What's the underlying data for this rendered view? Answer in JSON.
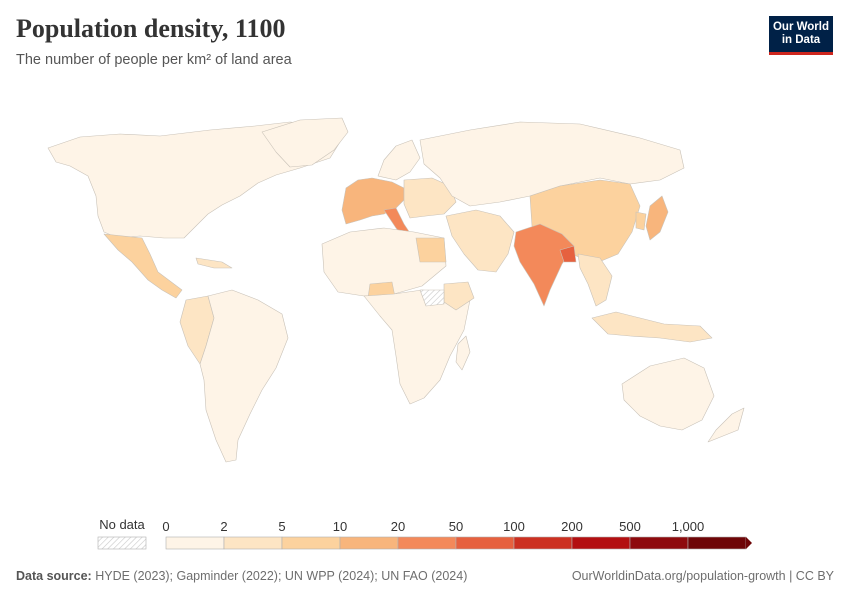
{
  "title": "Population density, 1100",
  "subtitle": "The number of people per km² of land area",
  "logo": {
    "line1": "Our World",
    "line2": "in Data"
  },
  "legend": {
    "no_data_label": "No data",
    "ticks": [
      "0",
      "2",
      "5",
      "10",
      "20",
      "50",
      "100",
      "200",
      "500",
      "1,000"
    ],
    "colors": [
      "#fef4e7",
      "#fde5c4",
      "#fcd29e",
      "#f8b57c",
      "#f3895a",
      "#e6613f",
      "#cc3021",
      "#b30f11",
      "#8e0a0d",
      "#6e0507"
    ]
  },
  "footer": {
    "source_label": "Data source:",
    "source_text": "HYDE (2023); Gapminder (2022); UN WPP (2024); UN FAO (2024)",
    "credit": "OurWorldinData.org/population-growth | CC BY"
  },
  "regions": [
    {
      "name": "North America",
      "density_bin": "0-2"
    },
    {
      "name": "Mexico and Central America",
      "density_bin": "2-5"
    },
    {
      "name": "South America",
      "density_bin": "0-2"
    },
    {
      "name": "Andean South America",
      "density_bin": "2-5"
    },
    {
      "name": "Western Europe",
      "density_bin": "10-20"
    },
    {
      "name": "Italy",
      "density_bin": "20-50"
    },
    {
      "name": "Eastern Europe",
      "density_bin": "2-5"
    },
    {
      "name": "Russia and Central Asia",
      "density_bin": "0-2"
    },
    {
      "name": "Middle East",
      "density_bin": "2-5"
    },
    {
      "name": "Egypt",
      "density_bin": "5-10"
    },
    {
      "name": "India",
      "density_bin": "20-50"
    },
    {
      "name": "Bangladesh",
      "density_bin": "50-100"
    },
    {
      "name": "China",
      "density_bin": "5-10"
    },
    {
      "name": "Japan",
      "density_bin": "10-20"
    },
    {
      "name": "Korea",
      "density_bin": "5-10"
    },
    {
      "name": "Southeast Asia",
      "density_bin": "2-5"
    },
    {
      "name": "North Africa",
      "density_bin": "0-2"
    },
    {
      "name": "Nigeria",
      "density_bin": "5-10"
    },
    {
      "name": "Sub-Saharan Africa",
      "density_bin": "0-2"
    },
    {
      "name": "Ethiopia",
      "density_bin": "2-5"
    },
    {
      "name": "Sudan",
      "density_bin": "no data"
    },
    {
      "name": "Australia",
      "density_bin": "0-2"
    },
    {
      "name": "Indonesia",
      "density_bin": "2-5"
    }
  ]
}
